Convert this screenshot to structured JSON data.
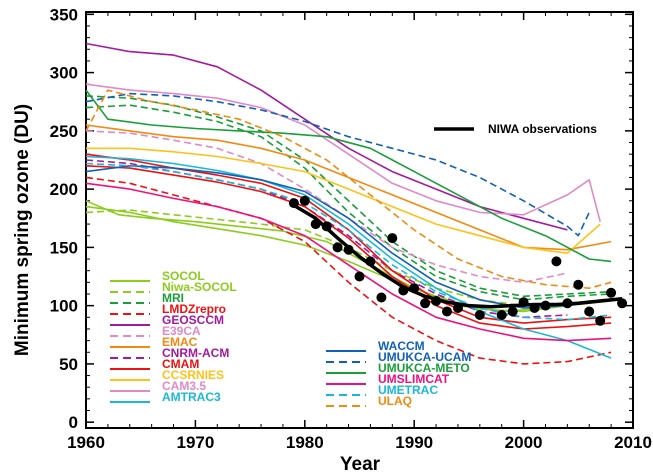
{
  "chart_data": {
    "type": "line",
    "xlabel": "Year",
    "ylabel": "Minimum spring ozone (DU)",
    "xlim": [
      1960,
      2010
    ],
    "ylim": [
      0,
      350
    ],
    "x_ticks": [
      "1960",
      "1970",
      "1980",
      "1990",
      "2000",
      "2010"
    ],
    "y_ticks": [
      "0",
      "50",
      "100",
      "150",
      "200",
      "250",
      "300",
      "350"
    ],
    "observation_label": "NIWA observations",
    "legend_left": [
      {
        "name": "SOCOL",
        "color": "#8ccc1e",
        "dash": false
      },
      {
        "name": "Niwa-SOCOL",
        "color": "#8ccc1e",
        "dash": true
      },
      {
        "name": "MRI",
        "color": "#1a9e3a",
        "dash": true
      },
      {
        "name": "LMDZrepro",
        "color": "#ee1111",
        "dash": true
      },
      {
        "name": "GEOSCCM",
        "color": "#a31aa0",
        "dash": false
      },
      {
        "name": "E39CA",
        "color": "#e08ac8",
        "dash": true
      },
      {
        "name": "EMAC",
        "color": "#f38a10",
        "dash": false
      },
      {
        "name": "CNRM-ACM",
        "color": "#a31aa0",
        "dash": true
      },
      {
        "name": "CMAM",
        "color": "#ee1111",
        "dash": false
      },
      {
        "name": "CCSRNIES",
        "color": "#ffc21a",
        "dash": false
      },
      {
        "name": "CAM3.5",
        "color": "#e08ac8",
        "dash": false
      },
      {
        "name": "AMTRAC3",
        "color": "#1ab8d8",
        "dash": false
      }
    ],
    "legend_right": [
      {
        "name": "WACCM",
        "color": "#1060b8",
        "dash": false
      },
      {
        "name": "UMUKCA-UCAM",
        "color": "#1060b8",
        "dash": true
      },
      {
        "name": "UMUKCA-METO",
        "color": "#1a9e3a",
        "dash": false
      },
      {
        "name": "UMSLIMCAT",
        "color": "#ee1080",
        "dash": false
      },
      {
        "name": "UMETRAC",
        "color": "#1ab8d8",
        "dash": true
      },
      {
        "name": "ULAQ",
        "color": "#f38a10",
        "dash": true
      }
    ],
    "observations": {
      "x": [
        1979,
        1980,
        1981,
        1982,
        1983,
        1984,
        1985,
        1986,
        1987,
        1988,
        1989,
        1990,
        1991,
        1992,
        1993,
        1994,
        1996,
        1998,
        1999,
        2000,
        2001,
        2002,
        2003,
        2004,
        2005,
        2006,
        2007,
        2008,
        2009
      ],
      "y": [
        188,
        190,
        170,
        168,
        150,
        148,
        125,
        138,
        107,
        158,
        113,
        115,
        102,
        104,
        95,
        98,
        92,
        92,
        95,
        103,
        98,
        100,
        138,
        102,
        118,
        95,
        87,
        111,
        102
      ]
    },
    "observation_fit": {
      "x": [
        1979,
        1981,
        1983,
        1985,
        1987,
        1989,
        1991,
        1993,
        1995,
        1997,
        1999,
        2001,
        2003,
        2005,
        2007,
        2009
      ],
      "y": [
        186,
        175,
        158,
        142,
        128,
        116,
        108,
        103,
        100,
        99,
        100,
        101,
        101,
        102,
        104,
        106
      ]
    },
    "models": [
      {
        "name": "SOCOL",
        "color": "#8ccc1e",
        "dash": false,
        "x": [
          1960,
          1963,
          1966,
          1970,
          1974,
          1978,
          1982,
          1986,
          1990,
          1994,
          1998,
          2002,
          2006
        ],
        "y": [
          190,
          178,
          175,
          172,
          168,
          164,
          155,
          135,
          115,
          100,
          95,
          98,
          102
        ]
      },
      {
        "name": "SOCOL",
        "color": "#8ccc1e",
        "dash": false,
        "x": [
          1960,
          1964,
          1968,
          1972,
          1976,
          1980,
          1984,
          1988,
          1992,
          1996,
          2000,
          2004,
          2008
        ],
        "y": [
          185,
          180,
          172,
          166,
          160,
          152,
          138,
          122,
          108,
          97,
          95,
          100,
          104
        ]
      },
      {
        "name": "Niwa-SOCOL",
        "color": "#8ccc1e",
        "dash": true,
        "x": [
          1960,
          1964,
          1968,
          1972,
          1976,
          1980,
          1984,
          1988,
          1992,
          1996,
          2000,
          2004,
          2008
        ],
        "y": [
          180,
          182,
          178,
          174,
          170,
          165,
          150,
          130,
          115,
          105,
          100,
          102,
          106
        ]
      },
      {
        "name": "MRI",
        "color": "#1a9e3a",
        "dash": true,
        "x": [
          1960,
          1964,
          1968,
          1972,
          1976,
          1980,
          1984,
          1988,
          1992,
          1996,
          2000,
          2004,
          2008
        ],
        "y": [
          280,
          278,
          272,
          262,
          250,
          225,
          190,
          155,
          130,
          115,
          108,
          110,
          112
        ]
      },
      {
        "name": "MRI",
        "color": "#1a9e3a",
        "dash": true,
        "x": [
          1960,
          1964,
          1968,
          1972,
          1976,
          1980,
          1984,
          1988,
          1992,
          1996,
          2000,
          2004,
          2008
        ],
        "y": [
          270,
          272,
          266,
          258,
          245,
          218,
          180,
          150,
          125,
          112,
          105,
          108,
          110
        ]
      },
      {
        "name": "LMDZrepro",
        "color": "#ee1111",
        "dash": true,
        "x": [
          1960,
          1964,
          1968,
          1972,
          1976,
          1980,
          1984,
          1988,
          1992,
          1996,
          2000,
          2004,
          2008
        ],
        "y": [
          210,
          205,
          195,
          185,
          175,
          155,
          120,
          90,
          70,
          55,
          50,
          52,
          60
        ]
      },
      {
        "name": "GEOSCCM",
        "color": "#a31aa0",
        "dash": false,
        "x": [
          1960,
          1964,
          1968,
          1972,
          1976,
          1980,
          1984,
          1988,
          1992,
          1996,
          2000,
          2004
        ],
        "y": [
          325,
          318,
          315,
          305,
          285,
          260,
          235,
          215,
          200,
          185,
          175,
          165
        ]
      },
      {
        "name": "E39CA",
        "color": "#e08ac8",
        "dash": true,
        "x": [
          1960,
          1964,
          1968,
          1972,
          1976,
          1980,
          1984,
          1988,
          1992,
          1996,
          2000,
          2004
        ],
        "y": [
          250,
          248,
          242,
          235,
          222,
          200,
          175,
          150,
          135,
          125,
          120,
          128
        ]
      },
      {
        "name": "EMAC",
        "color": "#f38a10",
        "dash": false,
        "x": [
          1960,
          1964,
          1968,
          1972,
          1976,
          1980,
          1984,
          1988,
          1992,
          1996,
          2000,
          2004,
          2008
        ],
        "y": [
          255,
          250,
          245,
          242,
          235,
          225,
          210,
          195,
          180,
          165,
          150,
          148,
          155
        ]
      },
      {
        "name": "CNRM-ACM",
        "color": "#a31aa0",
        "dash": true,
        "x": [
          1960,
          1964,
          1968,
          1972,
          1976,
          1980,
          1984,
          1988,
          1992,
          1996,
          2000,
          2004
        ],
        "y": [
          225,
          222,
          215,
          208,
          200,
          185,
          160,
          130,
          110,
          95,
          90,
          92
        ]
      },
      {
        "name": "CMAM",
        "color": "#ee1111",
        "dash": false,
        "x": [
          1960,
          1964,
          1968,
          1972,
          1976,
          1980,
          1984,
          1988,
          1992,
          1996,
          2000,
          2004,
          2008
        ],
        "y": [
          230,
          225,
          218,
          212,
          205,
          192,
          165,
          130,
          105,
          90,
          85,
          88,
          90
        ]
      },
      {
        "name": "CMAM",
        "color": "#ee1111",
        "dash": false,
        "x": [
          1960,
          1964,
          1968,
          1972,
          1976,
          1980,
          1984,
          1988,
          1992,
          1996,
          2000,
          2004,
          2008
        ],
        "y": [
          220,
          218,
          212,
          206,
          198,
          185,
          158,
          125,
          100,
          85,
          80,
          82,
          85
        ]
      },
      {
        "name": "CCSRNIES",
        "color": "#ffc21a",
        "dash": false,
        "x": [
          1960,
          1964,
          1968,
          1972,
          1976,
          1980,
          1984,
          1988,
          1992,
          1996,
          2000,
          2004,
          2007
        ],
        "y": [
          235,
          235,
          232,
          228,
          222,
          215,
          200,
          185,
          170,
          160,
          150,
          145,
          170
        ]
      },
      {
        "name": "CAM3.5",
        "color": "#e08ac8",
        "dash": false,
        "x": [
          1960,
          1964,
          1968,
          1972,
          1976,
          1980,
          1984,
          1988,
          1992,
          1996,
          2000,
          2004,
          2006,
          2007
        ],
        "y": [
          290,
          285,
          282,
          278,
          270,
          255,
          230,
          205,
          190,
          180,
          178,
          195,
          208,
          172
        ]
      },
      {
        "name": "AMTRAC3",
        "color": "#1ab8d8",
        "dash": false,
        "x": [
          1960,
          1964,
          1968,
          1972,
          1976,
          1980,
          1984,
          1988,
          1992,
          1996,
          2000,
          2004,
          2008
        ],
        "y": [
          228,
          226,
          222,
          216,
          208,
          195,
          170,
          140,
          115,
          95,
          80,
          70,
          55
        ]
      },
      {
        "name": "WACCM",
        "color": "#1060b8",
        "dash": false,
        "x": [
          1960,
          1964,
          1968,
          1972,
          1976,
          1980,
          1984,
          1988,
          1992,
          1996,
          2000,
          2004,
          2008
        ],
        "y": [
          215,
          220,
          218,
          214,
          208,
          198,
          175,
          145,
          120,
          105,
          98,
          100,
          105
        ]
      },
      {
        "name": "UMUKCA-UCAM",
        "color": "#1060b8",
        "dash": true,
        "x": [
          1960,
          1964,
          1968,
          1972,
          1976,
          1980,
          1984,
          1988,
          1992,
          1996,
          2000,
          2004,
          2005,
          2006
        ],
        "y": [
          275,
          282,
          280,
          275,
          268,
          258,
          245,
          235,
          225,
          210,
          190,
          168,
          160,
          180
        ]
      },
      {
        "name": "UMUKCA-METO",
        "color": "#1a9e3a",
        "dash": false,
        "x": [
          1960,
          1962,
          1966,
          1970,
          1974,
          1978,
          1982,
          1986,
          1990,
          1994,
          1998,
          2002,
          2006,
          2008
        ],
        "y": [
          285,
          260,
          255,
          252,
          250,
          248,
          245,
          235,
          215,
          195,
          175,
          160,
          140,
          138
        ]
      },
      {
        "name": "UMSLIMCAT",
        "color": "#ee1080",
        "dash": false,
        "x": [
          1960,
          1964,
          1968,
          1972,
          1976,
          1980,
          1984,
          1988,
          1992,
          1996,
          2000,
          2004,
          2008
        ],
        "y": [
          205,
          200,
          192,
          185,
          175,
          160,
          135,
          110,
          90,
          80,
          72,
          70,
          72
        ]
      },
      {
        "name": "UMETRAC",
        "color": "#1ab8d8",
        "dash": true,
        "x": [
          1960,
          1964,
          1968,
          1972,
          1976,
          1980,
          1984,
          1988,
          1992,
          1996,
          2000,
          2004,
          2008
        ],
        "y": [
          222,
          220,
          215,
          208,
          200,
          188,
          165,
          135,
          112,
          98,
          90,
          88,
          92
        ]
      },
      {
        "name": "ULAQ",
        "color": "#f38a10",
        "dash": true,
        "x": [
          1960,
          1962,
          1966,
          1970,
          1974,
          1978,
          1982,
          1986,
          1990,
          1994,
          1998,
          2002,
          2006,
          2008
        ],
        "y": [
          250,
          285,
          275,
          268,
          260,
          245,
          225,
          195,
          165,
          140,
          125,
          118,
          115,
          120
        ]
      }
    ]
  }
}
